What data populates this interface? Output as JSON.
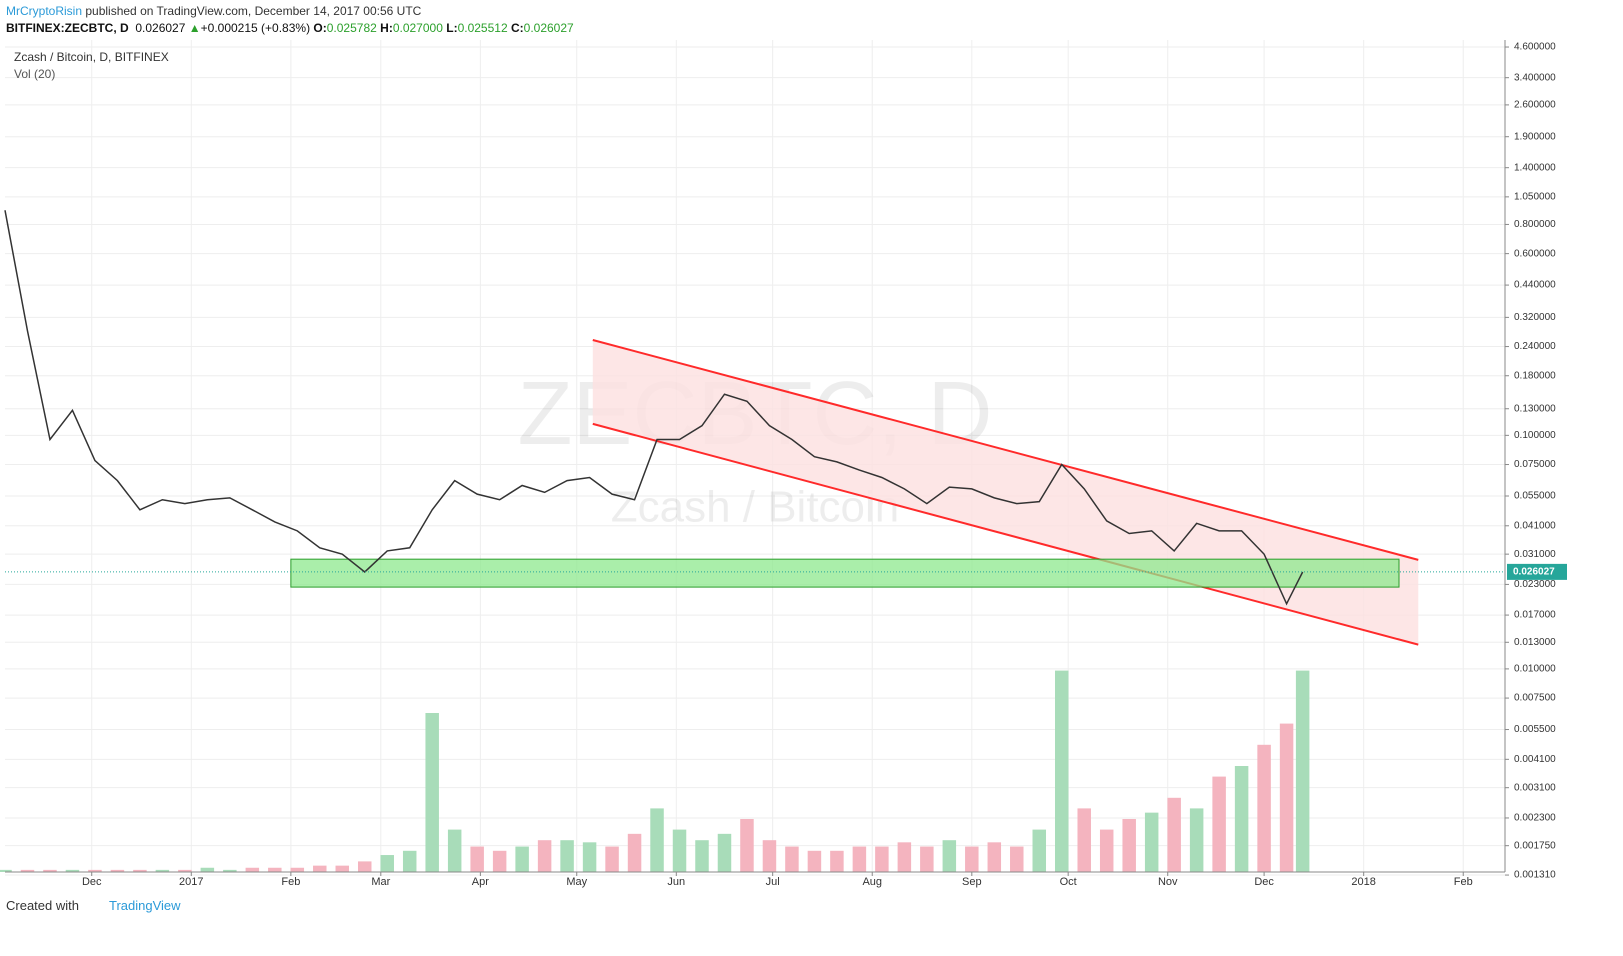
{
  "header": {
    "author": "MrCryptoRisin",
    "published": "published on TradingView.com, December 14, 2017 00:56 UTC",
    "symbol": "BITFINEX:ZECBTC, D",
    "last": "0.026027",
    "arrow": "▲",
    "change": "+0.000215 (+0.83%)",
    "o_label": "O:",
    "open": "0.025782",
    "h_label": "H:",
    "high": "0.027000",
    "l_label": "L:",
    "low": "0.025512",
    "c_label": "C:",
    "close": "0.026027"
  },
  "chart_data": {
    "type": "line",
    "watermark": "ZECBTC, D",
    "watermark_sub": "Zcash / Bitcoin",
    "log_scale": true,
    "grid": true,
    "x": [
      -27,
      -20,
      -13,
      -6,
      1,
      8,
      15,
      22,
      29,
      36,
      43,
      50,
      57,
      64,
      71,
      78,
      85,
      92,
      99,
      106,
      113,
      120,
      127,
      134,
      141,
      148,
      155,
      162,
      169,
      176,
      183,
      190,
      197,
      204,
      211,
      218,
      225,
      232,
      239,
      246,
      253,
      260,
      267,
      274,
      281,
      288,
      295,
      302,
      309,
      316,
      323,
      330,
      337,
      344,
      351,
      358,
      365,
      372,
      377
    ],
    "series": [
      {
        "name": "Zcash / Bitcoin, D, BITFINEX",
        "color": "#333333",
        "values": [
          0.92,
          0.28,
          0.096,
          0.128,
          0.078,
          0.064,
          0.048,
          0.053,
          0.051,
          0.053,
          0.054,
          0.048,
          0.0426,
          0.039,
          0.033,
          0.031,
          0.026,
          0.032,
          0.033,
          0.048,
          0.064,
          0.056,
          0.053,
          0.061,
          0.057,
          0.064,
          0.066,
          0.056,
          0.053,
          0.096,
          0.096,
          0.11,
          0.15,
          0.14,
          0.11,
          0.096,
          0.081,
          0.077,
          0.071,
          0.066,
          0.059,
          0.051,
          0.06,
          0.059,
          0.054,
          0.051,
          0.052,
          0.075,
          0.059,
          0.043,
          0.038,
          0.039,
          0.032,
          0.042,
          0.039,
          0.039,
          0.031,
          0.019,
          0.026
        ]
      },
      {
        "name": "Vol (20)",
        "axis": "y2",
        "up_color": "#a8dcb9",
        "down_color": "#f4b4bf",
        "values": [
          1,
          1,
          1,
          1,
          1,
          1,
          1,
          1,
          1,
          2,
          1,
          2,
          2,
          2,
          3,
          3,
          5,
          8,
          10,
          75,
          20,
          12,
          10,
          12,
          15,
          15,
          14,
          12,
          18,
          30,
          20,
          15,
          18,
          25,
          15,
          12,
          10,
          10,
          12,
          12,
          14,
          12,
          15,
          12,
          14,
          12,
          20,
          95,
          30,
          20,
          25,
          28,
          35,
          30,
          45,
          50,
          60,
          70,
          95
        ]
      }
    ],
    "xlim": [
      -27,
      440
    ],
    "xticks": [
      {
        "value": 0,
        "label": "Dec"
      },
      {
        "value": 31,
        "label": "2017"
      },
      {
        "value": 62,
        "label": "Feb"
      },
      {
        "value": 90,
        "label": "Mar"
      },
      {
        "value": 121,
        "label": "Apr"
      },
      {
        "value": 151,
        "label": "May"
      },
      {
        "value": 182,
        "label": "Jun"
      },
      {
        "value": 212,
        "label": "Jul"
      },
      {
        "value": 243,
        "label": "Aug"
      },
      {
        "value": 274,
        "label": "Sep"
      },
      {
        "value": 304,
        "label": "Oct"
      },
      {
        "value": 335,
        "label": "Nov"
      },
      {
        "value": 365,
        "label": "Dec"
      },
      {
        "value": 396,
        "label": "2018"
      },
      {
        "value": 427,
        "label": "Feb"
      }
    ],
    "ylim": [
      0.00135,
      4.93
    ],
    "yticks": [
      {
        "value": 4.6,
        "label": "4.600000"
      },
      {
        "value": 3.4,
        "label": "3.400000"
      },
      {
        "value": 2.6,
        "label": "2.600000"
      },
      {
        "value": 1.9,
        "label": "1.900000"
      },
      {
        "value": 1.4,
        "label": "1.400000"
      },
      {
        "value": 1.05,
        "label": "1.050000"
      },
      {
        "value": 0.8,
        "label": "0.800000"
      },
      {
        "value": 0.6,
        "label": "0.600000"
      },
      {
        "value": 0.44,
        "label": "0.440000"
      },
      {
        "value": 0.32,
        "label": "0.320000"
      },
      {
        "value": 0.24,
        "label": "0.240000"
      },
      {
        "value": 0.18,
        "label": "0.180000"
      },
      {
        "value": 0.13,
        "label": "0.130000"
      },
      {
        "value": 0.1,
        "label": "0.100000"
      },
      {
        "value": 0.075,
        "label": "0.075000"
      },
      {
        "value": 0.055,
        "label": "0.055000"
      },
      {
        "value": 0.041,
        "label": "0.041000"
      },
      {
        "value": 0.031,
        "label": "0.031000"
      },
      {
        "value": 0.023,
        "label": "0.023000"
      },
      {
        "value": 0.017,
        "label": "0.017000"
      },
      {
        "value": 0.013,
        "label": "0.013000"
      },
      {
        "value": 0.01,
        "label": "0.010000"
      },
      {
        "value": 0.0075,
        "label": "0.007500"
      },
      {
        "value": 0.0055,
        "label": "0.005500"
      },
      {
        "value": 0.0041,
        "label": "0.004100"
      },
      {
        "value": 0.0031,
        "label": "0.003100"
      },
      {
        "value": 0.0023,
        "label": "0.002300"
      },
      {
        "value": 0.00175,
        "label": "0.001750"
      },
      {
        "value": 0.00131,
        "label": "0.001310"
      }
    ],
    "y2lim": [
      0,
      100
    ],
    "last_price": {
      "value": 0.026027,
      "label": "0.026027",
      "color": "#26a69a"
    },
    "channel": {
      "color": "#ff2a2a",
      "fill": "#fde0e0",
      "x": [
        156,
        413
      ],
      "upper": [
        0.256,
        0.0293
      ],
      "lower": [
        0.112,
        0.0127
      ]
    },
    "zone": {
      "color": "#8ee88e",
      "x": [
        62,
        407
      ],
      "y": [
        0.0224,
        0.0295
      ]
    }
  },
  "footer": {
    "created": "Created with",
    "brand": "TradingView"
  }
}
